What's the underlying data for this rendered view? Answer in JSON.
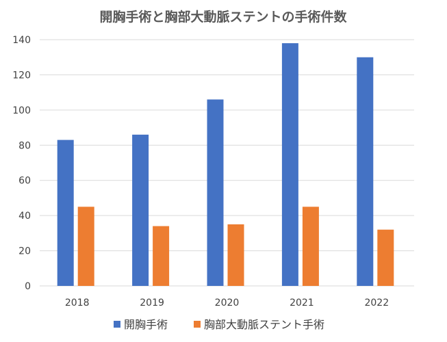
{
  "chart_data": {
    "type": "bar",
    "title": "開胸手術と胸部大動脈ステントの手術件数",
    "categories": [
      "2018",
      "2019",
      "2020",
      "2021",
      "2022"
    ],
    "series": [
      {
        "name": "開胸手術",
        "color": "#4472c4",
        "values": [
          83,
          86,
          106,
          138,
          130
        ]
      },
      {
        "name": "胸部大動脈ステント手術",
        "color": "#ed7d31",
        "values": [
          45,
          34,
          35,
          45,
          32
        ]
      }
    ],
    "ylim": [
      0,
      140
    ],
    "yticks": [
      0,
      20,
      40,
      60,
      80,
      100,
      120,
      140
    ],
    "xlabel": "",
    "ylabel": "",
    "grid": true,
    "legend_position": "bottom"
  }
}
